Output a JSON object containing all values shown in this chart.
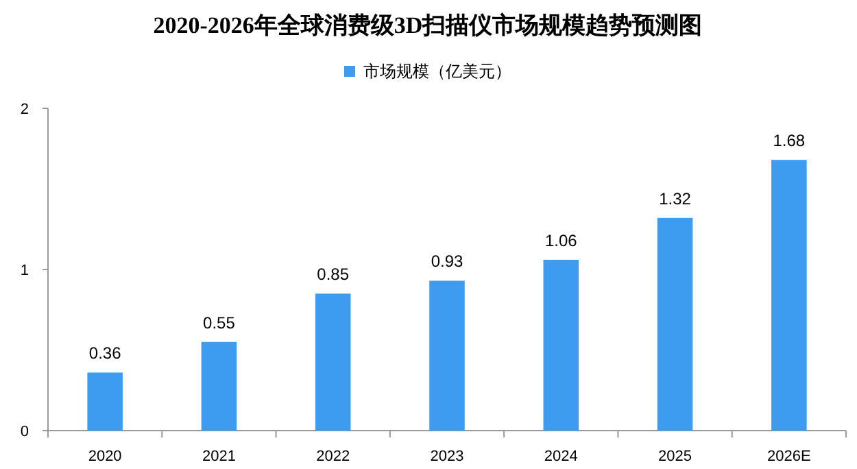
{
  "chart_data": {
    "type": "bar",
    "title": "2020-2026年全球消费级3D扫描仪市场规模趋势预测图",
    "categories": [
      "2020",
      "2021",
      "2022",
      "2023",
      "2024",
      "2025",
      "2026E"
    ],
    "series": [
      {
        "name": "市场规模（亿美元）",
        "color": "#3d9cf0",
        "values": [
          0.36,
          0.55,
          0.85,
          0.93,
          1.06,
          1.32,
          1.68
        ]
      }
    ],
    "ylim": [
      0,
      2
    ],
    "yticks": [
      0,
      1,
      2
    ],
    "data_labels": true,
    "legend": "top",
    "grid": false
  }
}
